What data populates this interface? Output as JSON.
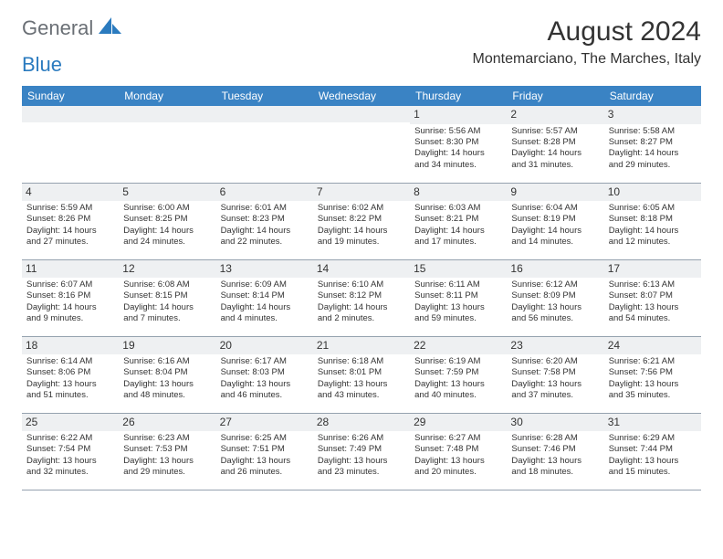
{
  "logo": {
    "general": "General",
    "blue": "Blue"
  },
  "title": "August 2024",
  "location": "Montemarciano, The Marches, Italy",
  "header_color": "#3a83c4",
  "daynum_bg": "#eef0f2",
  "border_color": "#95a2af",
  "weekdays": [
    "Sunday",
    "Monday",
    "Tuesday",
    "Wednesday",
    "Thursday",
    "Friday",
    "Saturday"
  ],
  "weeks": [
    [
      {
        "n": "",
        "sr": "",
        "ss": "",
        "dl1": "",
        "dl2": ""
      },
      {
        "n": "",
        "sr": "",
        "ss": "",
        "dl1": "",
        "dl2": ""
      },
      {
        "n": "",
        "sr": "",
        "ss": "",
        "dl1": "",
        "dl2": ""
      },
      {
        "n": "",
        "sr": "",
        "ss": "",
        "dl1": "",
        "dl2": ""
      },
      {
        "n": "1",
        "sr": "Sunrise: 5:56 AM",
        "ss": "Sunset: 8:30 PM",
        "dl1": "Daylight: 14 hours",
        "dl2": "and 34 minutes."
      },
      {
        "n": "2",
        "sr": "Sunrise: 5:57 AM",
        "ss": "Sunset: 8:28 PM",
        "dl1": "Daylight: 14 hours",
        "dl2": "and 31 minutes."
      },
      {
        "n": "3",
        "sr": "Sunrise: 5:58 AM",
        "ss": "Sunset: 8:27 PM",
        "dl1": "Daylight: 14 hours",
        "dl2": "and 29 minutes."
      }
    ],
    [
      {
        "n": "4",
        "sr": "Sunrise: 5:59 AM",
        "ss": "Sunset: 8:26 PM",
        "dl1": "Daylight: 14 hours",
        "dl2": "and 27 minutes."
      },
      {
        "n": "5",
        "sr": "Sunrise: 6:00 AM",
        "ss": "Sunset: 8:25 PM",
        "dl1": "Daylight: 14 hours",
        "dl2": "and 24 minutes."
      },
      {
        "n": "6",
        "sr": "Sunrise: 6:01 AM",
        "ss": "Sunset: 8:23 PM",
        "dl1": "Daylight: 14 hours",
        "dl2": "and 22 minutes."
      },
      {
        "n": "7",
        "sr": "Sunrise: 6:02 AM",
        "ss": "Sunset: 8:22 PM",
        "dl1": "Daylight: 14 hours",
        "dl2": "and 19 minutes."
      },
      {
        "n": "8",
        "sr": "Sunrise: 6:03 AM",
        "ss": "Sunset: 8:21 PM",
        "dl1": "Daylight: 14 hours",
        "dl2": "and 17 minutes."
      },
      {
        "n": "9",
        "sr": "Sunrise: 6:04 AM",
        "ss": "Sunset: 8:19 PM",
        "dl1": "Daylight: 14 hours",
        "dl2": "and 14 minutes."
      },
      {
        "n": "10",
        "sr": "Sunrise: 6:05 AM",
        "ss": "Sunset: 8:18 PM",
        "dl1": "Daylight: 14 hours",
        "dl2": "and 12 minutes."
      }
    ],
    [
      {
        "n": "11",
        "sr": "Sunrise: 6:07 AM",
        "ss": "Sunset: 8:16 PM",
        "dl1": "Daylight: 14 hours",
        "dl2": "and 9 minutes."
      },
      {
        "n": "12",
        "sr": "Sunrise: 6:08 AM",
        "ss": "Sunset: 8:15 PM",
        "dl1": "Daylight: 14 hours",
        "dl2": "and 7 minutes."
      },
      {
        "n": "13",
        "sr": "Sunrise: 6:09 AM",
        "ss": "Sunset: 8:14 PM",
        "dl1": "Daylight: 14 hours",
        "dl2": "and 4 minutes."
      },
      {
        "n": "14",
        "sr": "Sunrise: 6:10 AM",
        "ss": "Sunset: 8:12 PM",
        "dl1": "Daylight: 14 hours",
        "dl2": "and 2 minutes."
      },
      {
        "n": "15",
        "sr": "Sunrise: 6:11 AM",
        "ss": "Sunset: 8:11 PM",
        "dl1": "Daylight: 13 hours",
        "dl2": "and 59 minutes."
      },
      {
        "n": "16",
        "sr": "Sunrise: 6:12 AM",
        "ss": "Sunset: 8:09 PM",
        "dl1": "Daylight: 13 hours",
        "dl2": "and 56 minutes."
      },
      {
        "n": "17",
        "sr": "Sunrise: 6:13 AM",
        "ss": "Sunset: 8:07 PM",
        "dl1": "Daylight: 13 hours",
        "dl2": "and 54 minutes."
      }
    ],
    [
      {
        "n": "18",
        "sr": "Sunrise: 6:14 AM",
        "ss": "Sunset: 8:06 PM",
        "dl1": "Daylight: 13 hours",
        "dl2": "and 51 minutes."
      },
      {
        "n": "19",
        "sr": "Sunrise: 6:16 AM",
        "ss": "Sunset: 8:04 PM",
        "dl1": "Daylight: 13 hours",
        "dl2": "and 48 minutes."
      },
      {
        "n": "20",
        "sr": "Sunrise: 6:17 AM",
        "ss": "Sunset: 8:03 PM",
        "dl1": "Daylight: 13 hours",
        "dl2": "and 46 minutes."
      },
      {
        "n": "21",
        "sr": "Sunrise: 6:18 AM",
        "ss": "Sunset: 8:01 PM",
        "dl1": "Daylight: 13 hours",
        "dl2": "and 43 minutes."
      },
      {
        "n": "22",
        "sr": "Sunrise: 6:19 AM",
        "ss": "Sunset: 7:59 PM",
        "dl1": "Daylight: 13 hours",
        "dl2": "and 40 minutes."
      },
      {
        "n": "23",
        "sr": "Sunrise: 6:20 AM",
        "ss": "Sunset: 7:58 PM",
        "dl1": "Daylight: 13 hours",
        "dl2": "and 37 minutes."
      },
      {
        "n": "24",
        "sr": "Sunrise: 6:21 AM",
        "ss": "Sunset: 7:56 PM",
        "dl1": "Daylight: 13 hours",
        "dl2": "and 35 minutes."
      }
    ],
    [
      {
        "n": "25",
        "sr": "Sunrise: 6:22 AM",
        "ss": "Sunset: 7:54 PM",
        "dl1": "Daylight: 13 hours",
        "dl2": "and 32 minutes."
      },
      {
        "n": "26",
        "sr": "Sunrise: 6:23 AM",
        "ss": "Sunset: 7:53 PM",
        "dl1": "Daylight: 13 hours",
        "dl2": "and 29 minutes."
      },
      {
        "n": "27",
        "sr": "Sunrise: 6:25 AM",
        "ss": "Sunset: 7:51 PM",
        "dl1": "Daylight: 13 hours",
        "dl2": "and 26 minutes."
      },
      {
        "n": "28",
        "sr": "Sunrise: 6:26 AM",
        "ss": "Sunset: 7:49 PM",
        "dl1": "Daylight: 13 hours",
        "dl2": "and 23 minutes."
      },
      {
        "n": "29",
        "sr": "Sunrise: 6:27 AM",
        "ss": "Sunset: 7:48 PM",
        "dl1": "Daylight: 13 hours",
        "dl2": "and 20 minutes."
      },
      {
        "n": "30",
        "sr": "Sunrise: 6:28 AM",
        "ss": "Sunset: 7:46 PM",
        "dl1": "Daylight: 13 hours",
        "dl2": "and 18 minutes."
      },
      {
        "n": "31",
        "sr": "Sunrise: 6:29 AM",
        "ss": "Sunset: 7:44 PM",
        "dl1": "Daylight: 13 hours",
        "dl2": "and 15 minutes."
      }
    ]
  ]
}
